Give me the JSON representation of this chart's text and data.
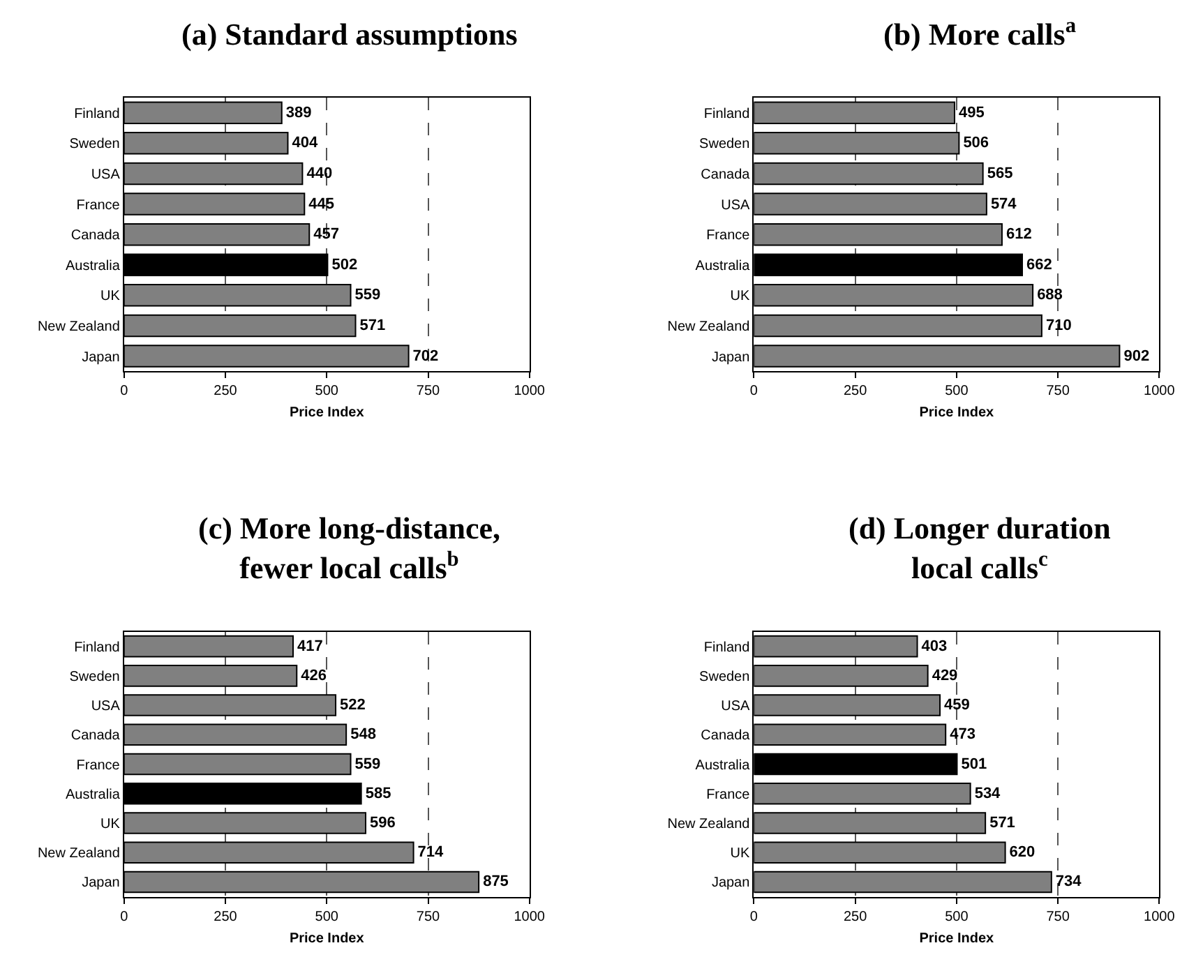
{
  "chart_data": [
    {
      "type": "bar",
      "orientation": "horizontal",
      "title": "(a) Standard assumptions",
      "xlabel": "Price Index",
      "categories": [
        "Finland",
        "Sweden",
        "USA",
        "France",
        "Canada",
        "Australia",
        "UK",
        "New Zealand",
        "Japan"
      ],
      "values": [
        389,
        404,
        440,
        445,
        457,
        502,
        559,
        571,
        702
      ],
      "colors": [
        "#808080",
        "#808080",
        "#808080",
        "#808080",
        "#808080",
        "#000000",
        "#808080",
        "#808080",
        "#808080"
      ],
      "xlim": [
        0,
        1000
      ],
      "xticks": [
        0,
        250,
        500,
        750,
        1000
      ],
      "grid": "x",
      "data_labels": true
    },
    {
      "type": "bar",
      "orientation": "horizontal",
      "title": "(b) More calls$^{a}$",
      "xlabel": "Price Index",
      "categories": [
        "Finland",
        "Sweden",
        "Canada",
        "USA",
        "France",
        "Australia",
        "UK",
        "New Zealand",
        "Japan"
      ],
      "values": [
        495,
        506,
        565,
        574,
        612,
        662,
        688,
        710,
        902
      ],
      "colors": [
        "#808080",
        "#808080",
        "#808080",
        "#808080",
        "#808080",
        "#000000",
        "#808080",
        "#808080",
        "#808080"
      ],
      "xlim": [
        0,
        1000
      ],
      "xticks": [
        0,
        250,
        500,
        750,
        1000
      ],
      "grid": "x",
      "data_labels": true
    },
    {
      "type": "bar",
      "orientation": "horizontal",
      "title": "(c) More long-distance,\nfewer local calls$^{b}$",
      "xlabel": "Price Index",
      "categories": [
        "Finland",
        "Sweden",
        "USA",
        "Canada",
        "France",
        "Australia",
        "UK",
        "New Zealand",
        "Japan"
      ],
      "values": [
        417,
        426,
        522,
        548,
        559,
        585,
        596,
        714,
        875
      ],
      "colors": [
        "#808080",
        "#808080",
        "#808080",
        "#808080",
        "#808080",
        "#000000",
        "#808080",
        "#808080",
        "#808080"
      ],
      "xlim": [
        0,
        1000
      ],
      "xticks": [
        0,
        250,
        500,
        750,
        1000
      ],
      "grid": "x",
      "data_labels": true
    },
    {
      "type": "bar",
      "orientation": "horizontal",
      "title": "(d) Longer duration\nlocal calls$^{c}$",
      "xlabel": "Price Index",
      "categories": [
        "Finland",
        "Sweden",
        "USA",
        "Canada",
        "Australia",
        "France",
        "New Zealand",
        "UK",
        "Japan"
      ],
      "values": [
        403,
        429,
        459,
        473,
        501,
        534,
        571,
        620,
        734
      ],
      "colors": [
        "#808080",
        "#808080",
        "#808080",
        "#808080",
        "#000000",
        "#808080",
        "#808080",
        "#808080",
        "#808080"
      ],
      "xlim": [
        0,
        1000
      ],
      "xticks": [
        0,
        250,
        500,
        750,
        1000
      ],
      "grid": "x",
      "data_labels": true
    }
  ]
}
